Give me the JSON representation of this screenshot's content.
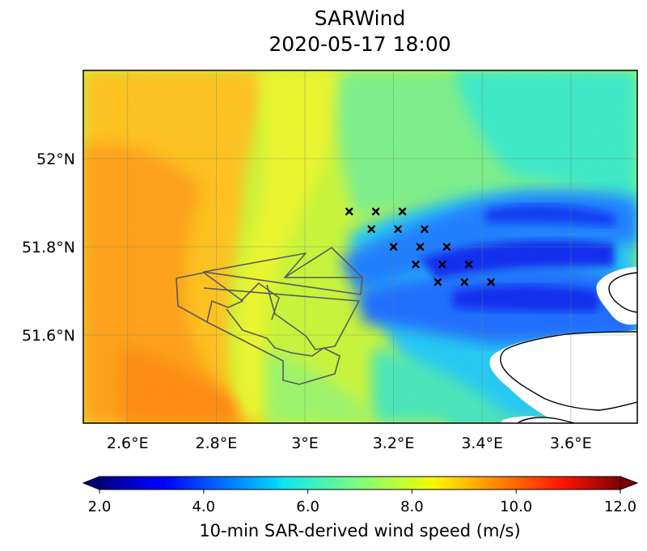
{
  "title": {
    "line1": "SARWind",
    "line2": "2020-05-17 18:00"
  },
  "map": {
    "lon_range": [
      2.5,
      3.75
    ],
    "lat_range": [
      51.4,
      52.2
    ],
    "lon_ticks": [
      {
        "value": 2.6,
        "label": "2.6°E"
      },
      {
        "value": 2.8,
        "label": "2.8°E"
      },
      {
        "value": 3.0,
        "label": "3°E"
      },
      {
        "value": 3.2,
        "label": "3.2°E"
      },
      {
        "value": 3.4,
        "label": "3.4°E"
      },
      {
        "value": 3.6,
        "label": "3.6°E"
      }
    ],
    "lat_ticks": [
      {
        "value": 52.0,
        "label": "52°N"
      },
      {
        "value": 51.8,
        "label": "51.8°N"
      },
      {
        "value": 51.6,
        "label": "51.6°N"
      }
    ],
    "gridlines": true,
    "turbine_markers": [
      [
        3.1,
        51.88
      ],
      [
        3.16,
        51.88
      ],
      [
        3.22,
        51.88
      ],
      [
        3.15,
        51.84
      ],
      [
        3.21,
        51.84
      ],
      [
        3.27,
        51.84
      ],
      [
        3.2,
        51.8
      ],
      [
        3.26,
        51.8
      ],
      [
        3.32,
        51.8
      ],
      [
        3.25,
        51.76
      ],
      [
        3.31,
        51.76
      ],
      [
        3.37,
        51.76
      ],
      [
        3.3,
        51.72
      ],
      [
        3.36,
        51.72
      ],
      [
        3.42,
        51.72
      ]
    ],
    "colors": {
      "land": "#ffffff",
      "coastline": "#000000",
      "windfarm_outline": "#555555",
      "marker": "#000000"
    }
  },
  "colorbar": {
    "min": 2.0,
    "max": 12.0,
    "colormap": "jet",
    "extend": "both",
    "ticks": [
      "2.0",
      "4.0",
      "6.0",
      "8.0",
      "10.0",
      "12.0"
    ],
    "label": "10-min SAR-derived wind speed (m/s)"
  }
}
